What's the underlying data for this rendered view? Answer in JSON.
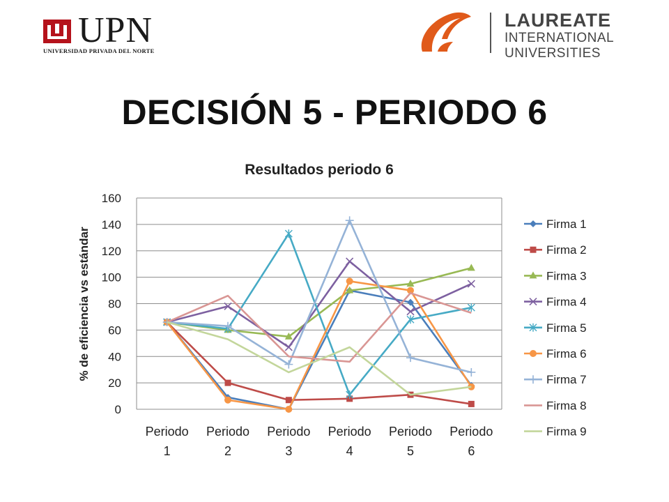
{
  "header": {
    "upn_logo": {
      "name": "UPN",
      "subtitle": "UNIVERSIDAD PRIVADA DEL NORTE",
      "colors": {
        "brand": "#b5121b",
        "text": "#1a1a1a"
      }
    },
    "laureate_logo": {
      "line1": "LAUREATE",
      "line2": "INTERNATIONAL",
      "line3": "UNIVERSITIES",
      "colors": {
        "brand": "#e05a1a",
        "text": "#444444"
      }
    }
  },
  "slide": {
    "title": "DECISIÓN 5 - PERIODO 6"
  },
  "chart_data": {
    "type": "line",
    "title": "Resultados periodo 6",
    "xlabel": "",
    "ylabel": "% de eficiencia vs estándar",
    "categories": [
      [
        "Periodo",
        "1"
      ],
      [
        "Periodo",
        "2"
      ],
      [
        "Periodo",
        "3"
      ],
      [
        "Periodo",
        "4"
      ],
      [
        "Periodo",
        "5"
      ],
      [
        "Periodo",
        "6"
      ]
    ],
    "ylim": [
      0,
      160
    ],
    "yticks": [
      0,
      20,
      40,
      60,
      80,
      100,
      120,
      140,
      160
    ],
    "grid": true,
    "legend_position": "right",
    "series": [
      {
        "name": "Firma 1",
        "color": "#4a7ebb",
        "marker": "diamond",
        "values": [
          66,
          9,
          0,
          90,
          81,
          18
        ]
      },
      {
        "name": "Firma 2",
        "color": "#be4b48",
        "marker": "square",
        "values": [
          66,
          20,
          7,
          8,
          11,
          4
        ]
      },
      {
        "name": "Firma 3",
        "color": "#98b954",
        "marker": "triangle",
        "values": [
          66,
          60,
          55,
          90,
          95,
          107
        ]
      },
      {
        "name": "Firma 4",
        "color": "#7d60a0",
        "marker": "x",
        "values": [
          66,
          78,
          47,
          112,
          74,
          95
        ]
      },
      {
        "name": "Firma 5",
        "color": "#46aac5",
        "marker": "star",
        "values": [
          66,
          61,
          133,
          11,
          68,
          77
        ]
      },
      {
        "name": "Firma 6",
        "color": "#f79646",
        "marker": "circle",
        "values": [
          66,
          7,
          0,
          97,
          90,
          17
        ]
      },
      {
        "name": "Firma 7",
        "color": "#95b3d7",
        "marker": "plus",
        "values": [
          66,
          63,
          34,
          143,
          39,
          28
        ]
      },
      {
        "name": "Firma 8",
        "color": "#d99694",
        "marker": "none",
        "values": [
          66,
          86,
          40,
          36,
          88,
          73
        ]
      },
      {
        "name": "Firma 9",
        "color": "#c3d69b",
        "marker": "none",
        "values": [
          66,
          53,
          28,
          47,
          11,
          17
        ]
      }
    ]
  }
}
